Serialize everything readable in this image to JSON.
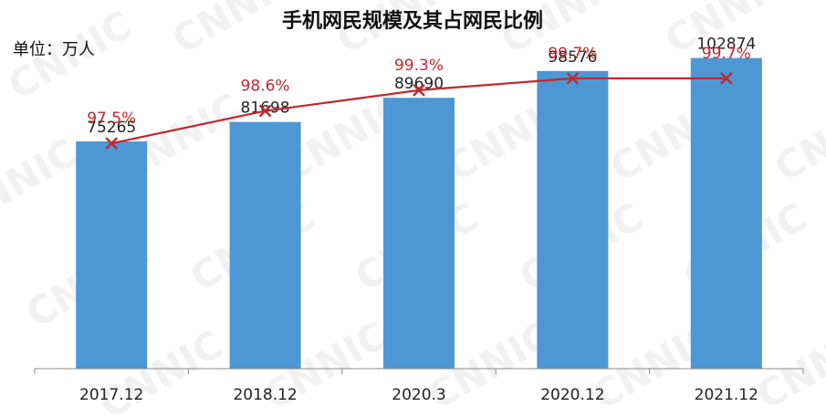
{
  "chart_data": {
    "type": "bar",
    "title": "手机网民规模及其占网民比例",
    "unit_label": "单位：万人",
    "categories": [
      "2017.12",
      "2018.12",
      "2020.3",
      "2020.12",
      "2021.12"
    ],
    "series": [
      {
        "type": "bar",
        "values": [
          75265,
          81698,
          89690,
          98576,
          102874
        ],
        "value_labels": [
          "75265",
          "81698",
          "89690",
          "98576",
          "102874"
        ],
        "color": "#4e97d5"
      },
      {
        "type": "line",
        "values": [
          97.5,
          98.6,
          99.3,
          99.7,
          99.7
        ],
        "value_labels": [
          "97.5%",
          "98.6%",
          "99.3%",
          "99.7%",
          "99.7%"
        ],
        "color": "#c0282d",
        "marker": "x"
      }
    ],
    "bar_ylim": [
      0,
      110000
    ],
    "line_ylim": [
      90,
      100.5
    ],
    "grid": false,
    "legend": "none"
  },
  "watermark": "CNNIC"
}
